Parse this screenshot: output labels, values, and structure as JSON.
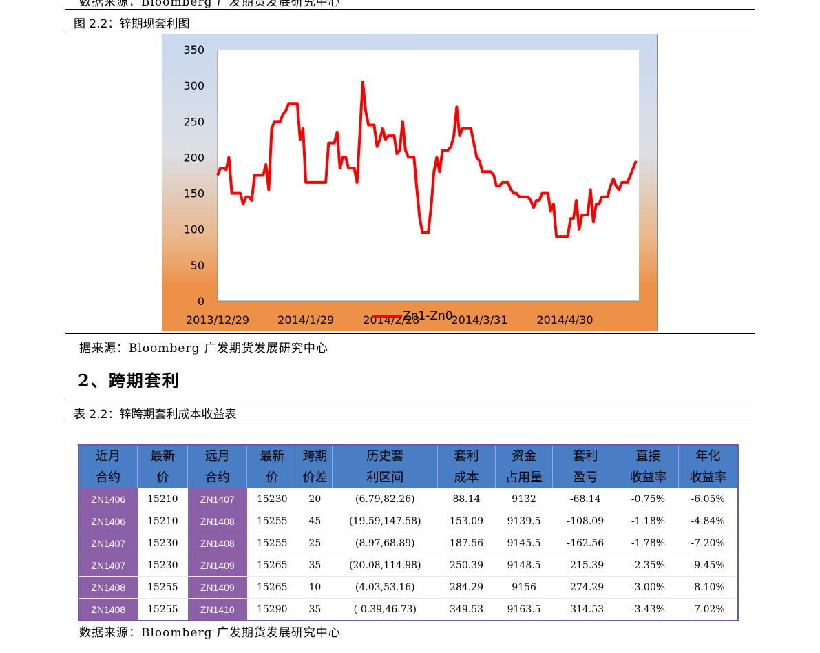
{
  "top_source": "数据来源：Bloomberg 广发期货发展研究中心",
  "figure": {
    "caption": "图 2.2：锌期现套利图"
  },
  "chart_data": {
    "type": "line",
    "title": "",
    "xlabel": "",
    "ylabel": "",
    "ylim": [
      0,
      350
    ],
    "yticks": [
      0,
      50,
      100,
      150,
      200,
      250,
      300,
      350
    ],
    "xticks": [
      "2013/12/29",
      "2014/1/29",
      "2014/2/28",
      "2014/3/31",
      "2014/4/30"
    ],
    "xrange": [
      "2013/12/29",
      "2014/5/26"
    ],
    "grid": false,
    "legend_position": "bottom",
    "series": [
      {
        "name": "Zn1-Zn0",
        "color": "#ff0000",
        "points": [
          [
            "2013/12/29",
            175
          ],
          [
            "2013/12/30",
            185
          ],
          [
            "2013/12/31",
            185
          ],
          [
            "2014/1/1",
            183
          ],
          [
            "2014/1/2",
            200
          ],
          [
            "2014/1/3",
            150
          ],
          [
            "2014/1/5",
            150
          ],
          [
            "2014/1/6",
            150
          ],
          [
            "2014/1/7",
            135
          ],
          [
            "2014/1/8",
            145
          ],
          [
            "2014/1/9",
            145
          ],
          [
            "2014/1/10",
            140
          ],
          [
            "2014/1/11",
            175
          ],
          [
            "2014/1/12",
            175
          ],
          [
            "2014/1/13",
            175
          ],
          [
            "2014/1/14",
            175
          ],
          [
            "2014/1/15",
            190
          ],
          [
            "2014/1/16",
            155
          ],
          [
            "2014/1/17",
            240
          ],
          [
            "2014/1/18",
            250
          ],
          [
            "2014/1/19",
            250
          ],
          [
            "2014/1/20",
            250
          ],
          [
            "2014/1/21",
            260
          ],
          [
            "2014/1/22",
            265
          ],
          [
            "2014/1/23",
            275
          ],
          [
            "2014/1/24",
            275
          ],
          [
            "2014/1/25",
            275
          ],
          [
            "2014/1/26",
            275
          ],
          [
            "2014/1/27",
            225
          ],
          [
            "2014/1/28",
            240
          ],
          [
            "2014/1/29",
            165
          ],
          [
            "2014/1/30",
            165
          ],
          [
            "2014/1/31",
            165
          ],
          [
            "2014/2/1",
            165
          ],
          [
            "2014/2/2",
            165
          ],
          [
            "2014/2/3",
            165
          ],
          [
            "2014/2/4",
            165
          ],
          [
            "2014/2/5",
            165
          ],
          [
            "2014/2/6",
            220
          ],
          [
            "2014/2/7",
            220
          ],
          [
            "2014/2/8",
            220
          ],
          [
            "2014/2/9",
            235
          ],
          [
            "2014/2/10",
            185
          ],
          [
            "2014/2/11",
            200
          ],
          [
            "2014/2/12",
            200
          ],
          [
            "2014/2/13",
            185
          ],
          [
            "2014/2/14",
            185
          ],
          [
            "2014/2/15",
            185
          ],
          [
            "2014/2/16",
            165
          ],
          [
            "2014/2/17",
            235
          ],
          [
            "2014/2/18",
            305
          ],
          [
            "2014/2/19",
            265
          ],
          [
            "2014/2/20",
            245
          ],
          [
            "2014/2/21",
            245
          ],
          [
            "2014/2/22",
            245
          ],
          [
            "2014/2/23",
            215
          ],
          [
            "2014/2/24",
            225
          ],
          [
            "2014/2/25",
            240
          ],
          [
            "2014/2/26",
            225
          ],
          [
            "2014/2/27",
            230
          ],
          [
            "2014/2/28",
            230
          ],
          [
            "2014/3/1",
            230
          ],
          [
            "2014/3/2",
            205
          ],
          [
            "2014/3/3",
            210
          ],
          [
            "2014/3/4",
            250
          ],
          [
            "2014/3/5",
            210
          ],
          [
            "2014/3/6",
            200
          ],
          [
            "2014/3/7",
            200
          ],
          [
            "2014/3/8",
            200
          ],
          [
            "2014/3/9",
            155
          ],
          [
            "2014/3/10",
            115
          ],
          [
            "2014/3/11",
            95
          ],
          [
            "2014/3/12",
            95
          ],
          [
            "2014/3/13",
            95
          ],
          [
            "2014/3/14",
            130
          ],
          [
            "2014/3/15",
            180
          ],
          [
            "2014/3/16",
            200
          ],
          [
            "2014/3/17",
            180
          ],
          [
            "2014/3/18",
            210
          ],
          [
            "2014/3/19",
            210
          ],
          [
            "2014/3/20",
            210
          ],
          [
            "2014/3/21",
            215
          ],
          [
            "2014/3/22",
            230
          ],
          [
            "2014/3/23",
            270
          ],
          [
            "2014/3/24",
            230
          ],
          [
            "2014/3/25",
            240
          ],
          [
            "2014/3/26",
            240
          ],
          [
            "2014/3/27",
            240
          ],
          [
            "2014/3/28",
            240
          ],
          [
            "2014/3/29",
            220
          ],
          [
            "2014/3/30",
            200
          ],
          [
            "2014/3/31",
            195
          ],
          [
            "2014/4/1",
            180
          ],
          [
            "2014/4/2",
            180
          ],
          [
            "2014/4/3",
            180
          ],
          [
            "2014/4/4",
            180
          ],
          [
            "2014/4/5",
            175
          ],
          [
            "2014/4/6",
            160
          ],
          [
            "2014/4/7",
            160
          ],
          [
            "2014/4/8",
            165
          ],
          [
            "2014/4/9",
            165
          ],
          [
            "2014/4/10",
            165
          ],
          [
            "2014/4/11",
            155
          ],
          [
            "2014/4/12",
            150
          ],
          [
            "2014/4/13",
            150
          ],
          [
            "2014/4/14",
            145
          ],
          [
            "2014/4/15",
            145
          ],
          [
            "2014/4/16",
            145
          ],
          [
            "2014/4/17",
            145
          ],
          [
            "2014/4/18",
            140
          ],
          [
            "2014/4/19",
            130
          ],
          [
            "2014/4/20",
            140
          ],
          [
            "2014/4/21",
            140
          ],
          [
            "2014/4/22",
            150
          ],
          [
            "2014/4/23",
            150
          ],
          [
            "2014/4/24",
            150
          ],
          [
            "2014/4/25",
            125
          ],
          [
            "2014/4/26",
            135
          ],
          [
            "2014/4/27",
            90
          ],
          [
            "2014/4/28",
            90
          ],
          [
            "2014/4/29",
            90
          ],
          [
            "2014/4/30",
            90
          ],
          [
            "2014/5/1",
            90
          ],
          [
            "2014/5/2",
            115
          ],
          [
            "2014/5/3",
            115
          ],
          [
            "2014/5/4",
            140
          ],
          [
            "2014/5/5",
            100
          ],
          [
            "2014/5/6",
            120
          ],
          [
            "2014/5/7",
            120
          ],
          [
            "2014/5/8",
            120
          ],
          [
            "2014/5/9",
            155
          ],
          [
            "2014/5/10",
            110
          ],
          [
            "2014/5/11",
            135
          ],
          [
            "2014/5/12",
            135
          ],
          [
            "2014/5/13",
            145
          ],
          [
            "2014/5/14",
            145
          ],
          [
            "2014/5/15",
            145
          ],
          [
            "2014/5/16",
            160
          ],
          [
            "2014/5/17",
            170
          ],
          [
            "2014/5/18",
            160
          ],
          [
            "2014/5/19",
            155
          ],
          [
            "2014/5/20",
            165
          ],
          [
            "2014/5/21",
            165
          ],
          [
            "2014/5/22",
            165
          ],
          [
            "2014/5/23",
            175
          ],
          [
            "2014/5/24",
            185
          ],
          [
            "2014/5/25",
            195
          ]
        ]
      }
    ]
  },
  "figure_source": "据来源：Bloomberg 广发期货发展研究中心",
  "section": {
    "title": "2、跨期套利"
  },
  "table": {
    "caption": "表 2.2：锌跨期套利成本收益表",
    "headers": [
      [
        "近月",
        "合约"
      ],
      [
        "最新",
        "价"
      ],
      [
        "远月",
        "合约"
      ],
      [
        "最新",
        "价"
      ],
      [
        "跨期",
        "价差"
      ],
      [
        "历史套",
        "利区间"
      ],
      [
        "套利",
        "成本"
      ],
      [
        "资金",
        "占用量"
      ],
      [
        "套利",
        "盈亏"
      ],
      [
        "直接",
        "收益率"
      ],
      [
        "年化",
        "收益率"
      ]
    ],
    "rows": [
      [
        "ZN1406",
        "15210",
        "ZN1407",
        "15230",
        "20",
        "(6.79,82.26)",
        "88.14",
        "9132",
        "-68.14",
        "-0.75%",
        "-6.05%"
      ],
      [
        "ZN1406",
        "15210",
        "ZN1408",
        "15255",
        "45",
        "(19.59,147.58)",
        "153.09",
        "9139.5",
        "-108.09",
        "-1.18%",
        "-4.84%"
      ],
      [
        "ZN1407",
        "15230",
        "ZN1408",
        "15255",
        "25",
        "(8.97,68.89)",
        "187.56",
        "9145.5",
        "-162.56",
        "-1.78%",
        "-7.20%"
      ],
      [
        "ZN1407",
        "15230",
        "ZN1409",
        "15265",
        "35",
        "(20.08,114.98)",
        "250.39",
        "9148.5",
        "-215.39",
        "-2.35%",
        "-9.45%"
      ],
      [
        "ZN1408",
        "15255",
        "ZN1409",
        "15265",
        "10",
        "(4.03,53.16)",
        "284.29",
        "9156",
        "-274.29",
        "-3.00%",
        "-8.10%"
      ],
      [
        "ZN1408",
        "15255",
        "ZN1410",
        "15290",
        "35",
        "(-0.39,46.73)",
        "349.53",
        "9163.5",
        "-314.53",
        "-3.43%",
        "-7.02%"
      ]
    ],
    "source": "数据来源：Bloomberg 广发期货发展研究中心"
  }
}
